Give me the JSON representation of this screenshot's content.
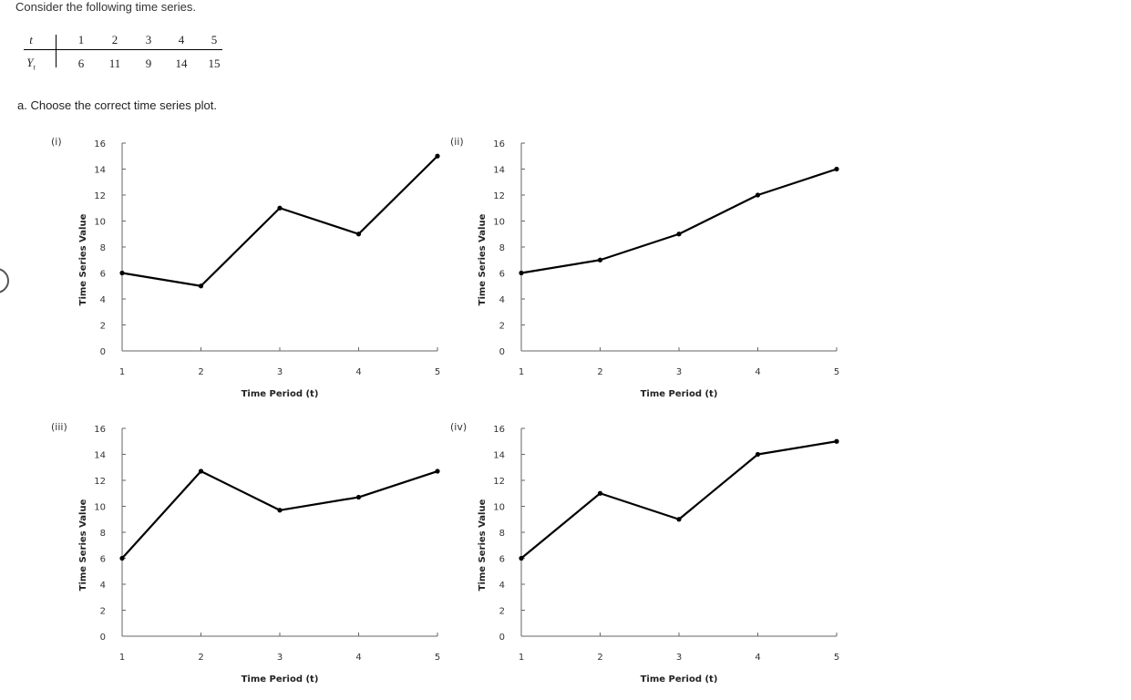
{
  "prompt": "Consider the following time series.",
  "table": {
    "t_label": "t",
    "y_label": "Y",
    "y_subscript": "t",
    "t_values": [
      "1",
      "2",
      "3",
      "4",
      "5"
    ],
    "y_values": [
      "6",
      "11",
      "9",
      "14",
      "15"
    ]
  },
  "question": "a. Choose the correct time series plot.",
  "chart_data": [
    {
      "type": "line",
      "option_label": "(i)",
      "x": [
        1,
        2,
        3,
        4,
        5
      ],
      "y": [
        6,
        5,
        11,
        9,
        15
      ],
      "xlabel": "Time Period (t)",
      "ylabel": "Time Series Value",
      "xticks": [
        "1",
        "2",
        "3",
        "4",
        "5"
      ],
      "yticks": [
        "0",
        "2",
        "4",
        "6",
        "8",
        "10",
        "12",
        "14",
        "16"
      ],
      "ylim": [
        0,
        16
      ],
      "grid": false
    },
    {
      "type": "line",
      "option_label": "(ii)",
      "x": [
        1,
        2,
        3,
        4,
        5
      ],
      "y": [
        6,
        7,
        9,
        12,
        14
      ],
      "xlabel": "Time Period (t)",
      "ylabel": "Time Series Value",
      "xticks": [
        "1",
        "2",
        "3",
        "4",
        "5"
      ],
      "yticks": [
        "0",
        "2",
        "4",
        "6",
        "8",
        "10",
        "12",
        "14",
        "16"
      ],
      "ylim": [
        0,
        16
      ],
      "grid": false
    },
    {
      "type": "line",
      "option_label": "(iii)",
      "x": [
        1,
        2,
        3,
        4,
        5
      ],
      "y": [
        6,
        12.7,
        9.7,
        10.7,
        12.7
      ],
      "xlabel": "Time Period (t)",
      "ylabel": "Time Series Value",
      "xticks": [
        "1",
        "2",
        "3",
        "4",
        "5"
      ],
      "yticks": [
        "0",
        "2",
        "4",
        "6",
        "8",
        "10",
        "12",
        "14",
        "16"
      ],
      "ylim": [
        0,
        16
      ],
      "grid": false
    },
    {
      "type": "line",
      "option_label": "(iv)",
      "x": [
        1,
        2,
        3,
        4,
        5
      ],
      "y": [
        6,
        11,
        9,
        14,
        15
      ],
      "xlabel": "Time Period (t)",
      "ylabel": "Time Series Value",
      "xticks": [
        "1",
        "2",
        "3",
        "4",
        "5"
      ],
      "yticks": [
        "0",
        "2",
        "4",
        "6",
        "8",
        "10",
        "12",
        "14",
        "16"
      ],
      "ylim": [
        0,
        16
      ],
      "grid": false
    }
  ]
}
